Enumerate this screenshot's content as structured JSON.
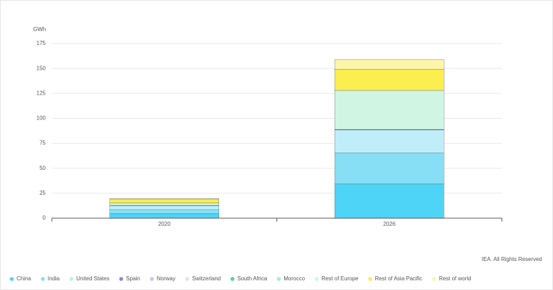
{
  "chart_data": {
    "type": "stacked_bar",
    "y_label": "GWh",
    "footer": "IEA. All Rights Reserved",
    "categories": [
      "2020",
      "2026"
    ],
    "ylim": [
      0,
      175
    ],
    "yticks": [
      0,
      25,
      50,
      75,
      100,
      125,
      150,
      175
    ],
    "grid": true,
    "legend": "bottom",
    "series": [
      {
        "name": "China",
        "color": "#4dd4f7",
        "values": [
          4.5,
          34.5
        ]
      },
      {
        "name": "India",
        "color": "#86dff5",
        "values": [
          4,
          31
        ]
      },
      {
        "name": "United States",
        "color": "#c0eef8",
        "values": [
          4,
          23
        ]
      },
      {
        "name": "Spain",
        "color": "#8a86d8",
        "values": [
          0.3,
          0.5
        ]
      },
      {
        "name": "Norway",
        "color": "#c9c4ec",
        "values": [
          0,
          0
        ]
      },
      {
        "name": "Switzerland",
        "color": "#e2e2e2",
        "values": [
          0,
          0
        ]
      },
      {
        "name": "South Africa",
        "color": "#4dd98a",
        "values": [
          0,
          0
        ]
      },
      {
        "name": "Morocco",
        "color": "#a8ebc9",
        "values": [
          0,
          0
        ]
      },
      {
        "name": "Rest of Europe",
        "color": "#d0f5e3",
        "values": [
          2.5,
          39
        ]
      },
      {
        "name": "Rest of Asia Pacific",
        "color": "#fbee4f",
        "values": [
          3.5,
          21
        ]
      },
      {
        "name": "Rest of world",
        "color": "#fdf5a8",
        "values": [
          1,
          10
        ]
      }
    ]
  }
}
